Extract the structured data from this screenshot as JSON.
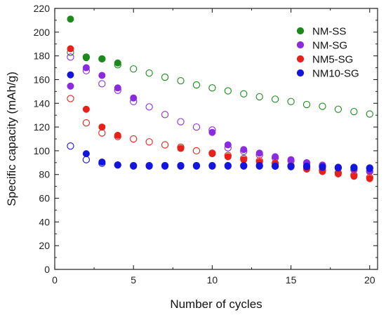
{
  "chart_data": {
    "type": "scatter",
    "xlabel": "Number of cycles",
    "ylabel": "Specific capacity (mAh/g)",
    "xlim": [
      0,
      20.5
    ],
    "ylim": [
      0,
      220
    ],
    "xticks": [
      0,
      5,
      10,
      15,
      20
    ],
    "yticks": [
      0,
      20,
      40,
      60,
      80,
      100,
      120,
      140,
      160,
      180,
      200,
      220
    ],
    "grid": false,
    "legend_position": "top-right",
    "legend_marker": "filled",
    "series": [
      {
        "name": "NM-SS",
        "color": "#1a8a1a",
        "filled": [
          [
            1,
            211
          ],
          [
            2,
            178.5
          ],
          [
            3,
            177.5
          ],
          [
            4,
            174
          ]
        ],
        "open": [
          [
            1,
            183
          ],
          [
            2,
            179
          ],
          [
            3,
            177.5
          ],
          [
            4,
            172.5
          ],
          [
            5,
            169
          ],
          [
            6,
            165.5
          ],
          [
            7,
            162
          ],
          [
            8,
            159
          ],
          [
            9,
            155.5
          ],
          [
            10,
            153
          ],
          [
            11,
            150.5
          ],
          [
            12,
            148
          ],
          [
            13,
            145.5
          ],
          [
            14,
            143.5
          ],
          [
            15,
            141.5
          ],
          [
            16,
            139
          ],
          [
            17,
            137.5
          ],
          [
            18,
            135
          ],
          [
            19,
            133
          ],
          [
            20,
            131
          ]
        ]
      },
      {
        "name": "NM-SG",
        "color": "#8a2be2",
        "filled": [
          [
            1,
            154.5
          ],
          [
            2,
            170
          ],
          [
            3,
            163.5
          ],
          [
            4,
            153
          ],
          [
            5,
            144.5
          ],
          [
            10,
            115.5
          ],
          [
            11,
            105
          ],
          [
            12,
            101
          ],
          [
            13,
            98
          ],
          [
            14,
            95
          ],
          [
            15,
            92.5
          ],
          [
            16,
            90
          ],
          [
            17,
            88
          ],
          [
            18,
            86
          ],
          [
            19,
            84.5
          ],
          [
            20,
            83
          ]
        ],
        "open": [
          [
            1,
            179
          ],
          [
            2,
            167.5
          ],
          [
            3,
            156.5
          ],
          [
            4,
            151
          ],
          [
            5,
            141.5
          ],
          [
            6,
            137
          ],
          [
            7,
            130.5
          ],
          [
            8,
            124.5
          ],
          [
            9,
            120
          ],
          [
            10,
            117.5
          ],
          [
            11,
            102.5
          ],
          [
            12,
            99.5
          ],
          [
            13,
            96.5
          ],
          [
            14,
            94
          ],
          [
            15,
            91.5
          ],
          [
            16,
            89.5
          ],
          [
            17,
            87.5
          ],
          [
            18,
            85.5
          ],
          [
            19,
            84
          ],
          [
            20,
            82.5
          ]
        ]
      },
      {
        "name": "NM5-SG",
        "color": "#e8201a",
        "filled": [
          [
            1,
            186
          ],
          [
            2,
            135
          ],
          [
            3,
            120
          ],
          [
            4,
            113
          ],
          [
            8,
            102
          ],
          [
            10,
            97.5
          ],
          [
            11,
            95
          ],
          [
            12,
            92.5
          ],
          [
            13,
            90.5
          ],
          [
            14,
            89
          ],
          [
            15,
            87
          ],
          [
            16,
            84.5
          ],
          [
            17,
            82.5
          ],
          [
            18,
            80.5
          ],
          [
            19,
            78.5
          ],
          [
            20,
            76.5
          ]
        ],
        "open": [
          [
            1,
            144
          ],
          [
            2,
            123.5
          ],
          [
            3,
            115
          ],
          [
            4,
            112
          ],
          [
            5,
            110
          ],
          [
            6,
            107.5
          ],
          [
            7,
            105
          ],
          [
            8,
            103
          ],
          [
            9,
            100
          ],
          [
            10,
            98
          ],
          [
            11,
            96
          ],
          [
            12,
            93.5
          ],
          [
            13,
            91.5
          ],
          [
            14,
            89.5
          ],
          [
            15,
            87.5
          ],
          [
            16,
            85.5
          ],
          [
            17,
            83.5
          ],
          [
            18,
            81.5
          ],
          [
            19,
            79.5
          ],
          [
            20,
            77.5
          ]
        ]
      },
      {
        "name": "NM10-SG",
        "color": "#1414e0",
        "filled": [
          [
            1,
            164
          ],
          [
            2,
            97.5
          ],
          [
            3,
            90.5
          ],
          [
            4,
            88
          ],
          [
            5,
            87
          ],
          [
            6,
            87
          ],
          [
            7,
            87
          ],
          [
            8,
            87
          ],
          [
            9,
            87
          ],
          [
            10,
            87
          ],
          [
            11,
            87
          ],
          [
            12,
            87
          ],
          [
            13,
            87
          ],
          [
            14,
            87
          ],
          [
            15,
            86.5
          ],
          [
            16,
            86.5
          ],
          [
            17,
            86
          ],
          [
            18,
            85.5
          ],
          [
            19,
            85.5
          ],
          [
            20,
            85
          ]
        ],
        "open": [
          [
            1,
            104
          ],
          [
            2,
            92.5
          ],
          [
            3,
            89.5
          ],
          [
            4,
            88
          ],
          [
            5,
            87.5
          ],
          [
            6,
            87.5
          ],
          [
            7,
            87.5
          ],
          [
            8,
            87.5
          ],
          [
            9,
            87.5
          ],
          [
            10,
            87.5
          ],
          [
            11,
            87.5
          ],
          [
            12,
            87.5
          ],
          [
            13,
            87.5
          ],
          [
            14,
            87
          ],
          [
            15,
            87
          ],
          [
            16,
            87
          ],
          [
            17,
            86.5
          ],
          [
            18,
            86
          ],
          [
            19,
            86
          ],
          [
            20,
            85.5
          ]
        ]
      }
    ]
  }
}
